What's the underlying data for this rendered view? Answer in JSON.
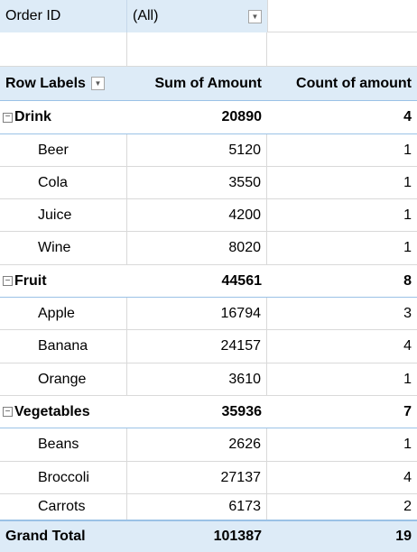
{
  "filter": {
    "label": "Order ID",
    "value": "(All)"
  },
  "header": {
    "row_labels": "Row Labels",
    "sum_amount": "Sum of Amount",
    "count_amount": "Count of amount"
  },
  "groups": [
    {
      "label": "Drink",
      "sum": "20890",
      "count": "4",
      "items": [
        {
          "label": "Beer",
          "sum": "5120",
          "count": "1"
        },
        {
          "label": "Cola",
          "sum": "3550",
          "count": "1"
        },
        {
          "label": "Juice",
          "sum": "4200",
          "count": "1"
        },
        {
          "label": "Wine",
          "sum": "8020",
          "count": "1"
        }
      ]
    },
    {
      "label": "Fruit",
      "sum": "44561",
      "count": "8",
      "items": [
        {
          "label": "Apple",
          "sum": "16794",
          "count": "3"
        },
        {
          "label": "Banana",
          "sum": "24157",
          "count": "4"
        },
        {
          "label": "Orange",
          "sum": "3610",
          "count": "1"
        }
      ]
    },
    {
      "label": "Vegetables",
      "sum": "35936",
      "count": "7",
      "items": [
        {
          "label": "Beans",
          "sum": "2626",
          "count": "1"
        },
        {
          "label": "Broccoli",
          "sum": "27137",
          "count": "4"
        },
        {
          "label": "Carrots",
          "sum": "6173",
          "count": "2"
        }
      ]
    }
  ],
  "grand_total": {
    "label": "Grand Total",
    "sum": "101387",
    "count": "19"
  },
  "icons": {
    "dropdown": "chevron-down-icon",
    "collapse": "minus-collapse-icon"
  },
  "colors": {
    "header_fill": "#ddebf7",
    "border_blue": "#9bc2e6"
  }
}
